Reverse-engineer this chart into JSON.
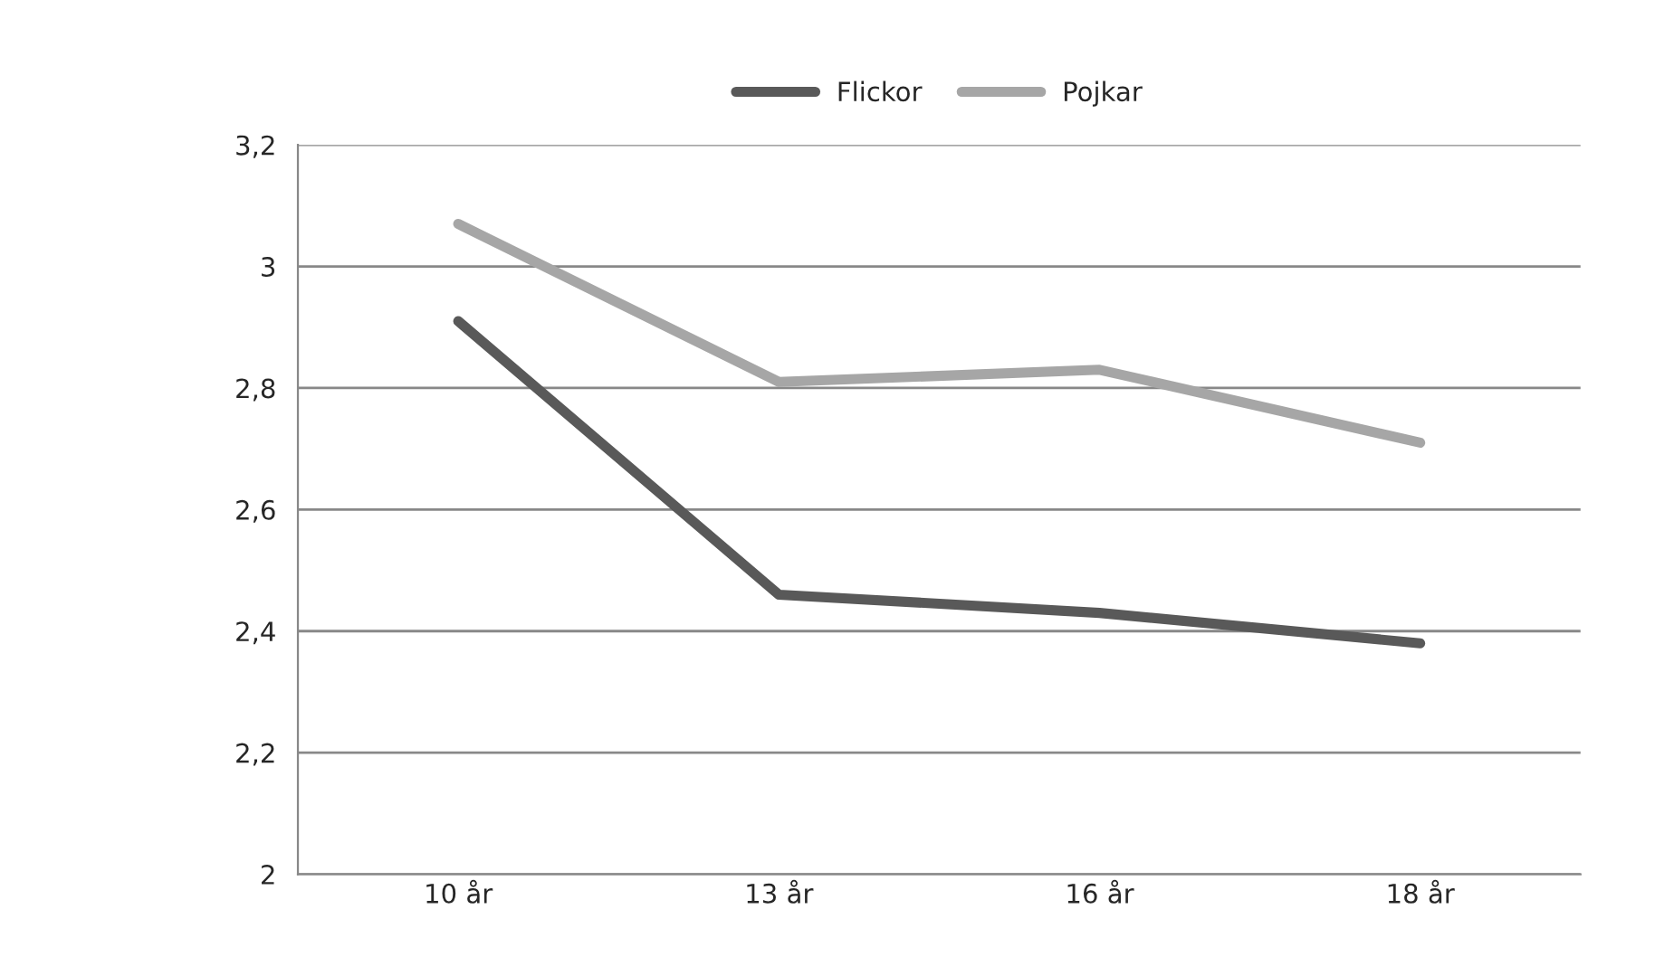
{
  "chart_data": {
    "type": "line",
    "categories": [
      "10 år",
      "13 år",
      "16 år",
      "18 år"
    ],
    "series": [
      {
        "name": "Flickor",
        "color": "#595959",
        "values": [
          2.91,
          2.46,
          2.43,
          2.38
        ]
      },
      {
        "name": "Pojkar",
        "color": "#a6a6a6",
        "values": [
          3.07,
          2.81,
          2.83,
          2.71
        ]
      }
    ],
    "ylim": [
      2,
      3.2
    ],
    "yticks": [
      2,
      {
        "value": 2.2,
        "label": "2,2"
      },
      {
        "value": 2.4,
        "label": "2,4"
      },
      {
        "value": 2.6,
        "label": "2,6"
      },
      {
        "value": 2.8,
        "label": "2,8"
      },
      3,
      {
        "value": 3.2,
        "label": "3,2"
      }
    ],
    "grid": "y",
    "legend": "top",
    "marker": "none",
    "line_style": "solid"
  }
}
